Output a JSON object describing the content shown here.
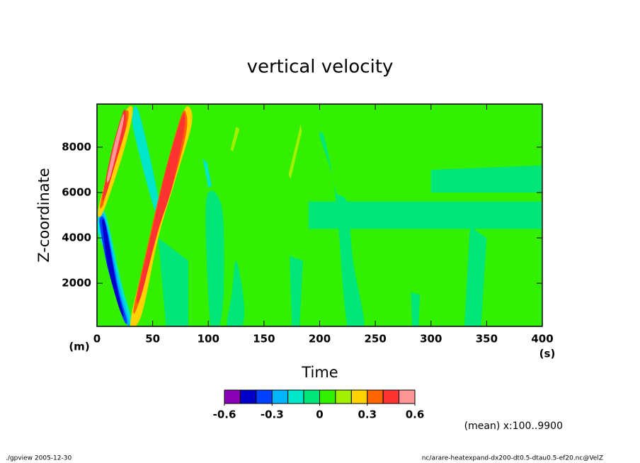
{
  "chart_data": {
    "type": "contour",
    "title": "vertical velocity",
    "xlabel": "Time",
    "ylabel": "Z-coordinate",
    "xunit": "(s)",
    "yunit": "(m)",
    "note": "(mean) x:100..9900",
    "footer_left": "./gpview  2005-12-30",
    "footer_right": "nc/arare-heatexpand-dx200-dt0.5-dtau0.5-ef20.nc@VelZ",
    "xlim": [
      0,
      400
    ],
    "ylim": [
      100,
      9900
    ],
    "xticks": [
      0,
      50,
      100,
      150,
      200,
      250,
      300,
      350,
      400
    ],
    "yticks": [
      2000,
      4000,
      6000,
      8000
    ],
    "levels": [
      -0.6,
      -0.5,
      -0.4,
      -0.3,
      -0.2,
      -0.1,
      0,
      0.1,
      0.2,
      0.3,
      0.4,
      0.5,
      0.6
    ],
    "colors": [
      "#8a00b4",
      "#0000c8",
      "#0040ff",
      "#00b4ff",
      "#00e6c8",
      "#00e678",
      "#32f000",
      "#a0f000",
      "#ffd200",
      "#ff6400",
      "#ff3232",
      "#ff9696"
    ],
    "colorbar_ticks": [
      -0.6,
      -0.3,
      0,
      0.3,
      0.6
    ],
    "regions": [
      {
        "value": 0,
        "t": [
          0,
          400,
          400,
          0
        ],
        "z": [
          100,
          100,
          9900,
          9900
        ]
      },
      {
        "value": -0.1,
        "t": [
          190,
          400,
          400,
          190
        ],
        "z": [
          4400,
          4400,
          5600,
          5600
        ]
      },
      {
        "value": -0.1,
        "t": [
          300,
          400,
          400,
          300
        ],
        "z": [
          6000,
          6000,
          7200,
          7000
        ]
      },
      {
        "value": -0.1,
        "t": [
          200,
          205,
          215,
          225,
          240,
          230,
          225,
          215,
          210
        ],
        "z": [
          8500,
          8300,
          5500,
          100,
          100,
          3000,
          5500,
          6000,
          7000
        ]
      },
      {
        "value": -0.1,
        "t": [
          173,
          185,
          182,
          175
        ],
        "z": [
          3200,
          3000,
          100,
          100
        ]
      },
      {
        "value": -0.1,
        "t": [
          330,
          345,
          350,
          335
        ],
        "z": [
          100,
          100,
          4000,
          4500
        ]
      },
      {
        "value": -0.1,
        "t": [
          282,
          290,
          289,
          283
        ],
        "z": [
          1600,
          1500,
          100,
          100
        ]
      },
      {
        "value": -0.1,
        "t": [
          55,
          82,
          82,
          62
        ],
        "z": [
          4000,
          3000,
          100,
          100
        ]
      },
      {
        "value": -0.1,
        "t": [
          98,
          112,
          114,
          110,
          102
        ],
        "z": [
          5600,
          5400,
          2000,
          100,
          100
        ]
      },
      {
        "value": -0.1,
        "t": [
          117,
          130,
          132,
          125,
          121
        ],
        "z": [
          100,
          100,
          1200,
          3000,
          1500
        ]
      },
      {
        "value": -0.2,
        "t": [
          32,
          38,
          55,
          52,
          34
        ],
        "z": [
          9500,
          9500,
          5800,
          5200,
          8500
        ]
      },
      {
        "value": -0.2,
        "t": [
          95,
          100,
          103,
          99
        ],
        "z": [
          7500,
          6200,
          6300,
          7300
        ]
      },
      {
        "value": -0.2,
        "t": [
          0,
          8,
          22,
          32,
          30,
          15,
          1
        ],
        "z": [
          5200,
          5000,
          2000,
          300,
          150,
          2500,
          4200
        ]
      },
      {
        "value": -0.3,
        "t": [
          2,
          8,
          20,
          29,
          26,
          12,
          3
        ],
        "z": [
          5000,
          4800,
          2000,
          300,
          300,
          2500,
          4300
        ]
      },
      {
        "value": -0.4,
        "t": [
          3,
          8,
          19,
          27,
          23,
          10,
          3
        ],
        "z": [
          4900,
          4600,
          1800,
          350,
          500,
          2600,
          4400
        ]
      },
      {
        "value": -0.5,
        "t": [
          5,
          8,
          18,
          24,
          20,
          10,
          5
        ],
        "z": [
          4800,
          4500,
          1800,
          600,
          900,
          2700,
          4500
        ]
      },
      {
        "value": 0.1,
        "t": [
          120,
          125,
          128,
          122
        ],
        "z": [
          7900,
          8900,
          8800,
          7800
        ]
      },
      {
        "value": 0.1,
        "t": [
          172,
          183,
          184,
          174
        ],
        "z": [
          6800,
          9000,
          8700,
          6600
        ]
      },
      {
        "value": 0.2,
        "t": [
          1,
          10,
          22,
          29,
          32,
          25,
          12,
          4
        ],
        "z": [
          5200,
          7000,
          9100,
          9800,
          9500,
          8000,
          6000,
          5000
        ]
      },
      {
        "value": 0.3,
        "t": [
          3,
          12,
          23,
          28,
          27,
          18,
          8,
          5
        ],
        "z": [
          5500,
          7400,
          9300,
          9600,
          9000,
          7500,
          5900,
          5400
        ]
      },
      {
        "value": 0.4,
        "t": [
          5,
          13,
          23,
          26,
          25,
          16,
          8
        ],
        "z": [
          5800,
          7800,
          9500,
          9500,
          8700,
          7200,
          5900
        ]
      },
      {
        "value": 0.5,
        "t": [
          9,
          16,
          23,
          24,
          20,
          12
        ],
        "z": [
          6600,
          8200,
          9400,
          9200,
          8300,
          6700
        ]
      },
      {
        "value": 0.2,
        "t": [
          30,
          45,
          60,
          75,
          82,
          85,
          70,
          55,
          40
        ],
        "z": [
          300,
          3500,
          6500,
          9200,
          9800,
          9000,
          6500,
          4000,
          600
        ]
      },
      {
        "value": 0.3,
        "t": [
          33,
          46,
          60,
          75,
          80,
          80,
          68,
          55,
          38
        ],
        "z": [
          900,
          3800,
          6700,
          9300,
          9500,
          8600,
          6300,
          4300,
          1200
        ]
      },
      {
        "value": 0.4,
        "t": [
          36,
          48,
          62,
          76,
          79,
          77,
          66,
          54,
          40
        ],
        "z": [
          1400,
          4000,
          7000,
          9300,
          9300,
          8400,
          6000,
          4200,
          1500
        ]
      }
    ]
  }
}
